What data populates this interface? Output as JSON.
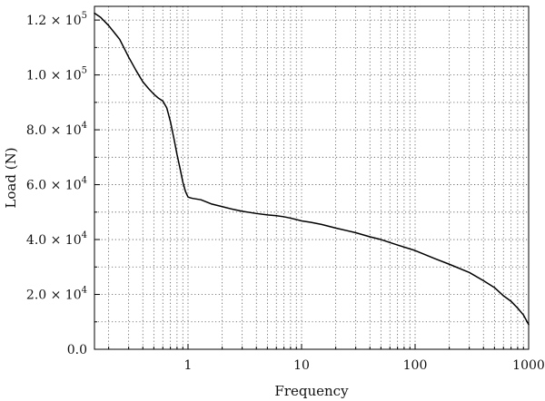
{
  "chart_data": {
    "type": "line",
    "title": "",
    "xlabel": "Frequency",
    "ylabel": "Load (N)",
    "x_scale": "log",
    "xlim": [
      0.15,
      1000
    ],
    "ylim": [
      0,
      125000
    ],
    "grid": true,
    "x_ticks": [
      {
        "value": 1,
        "label": "1"
      },
      {
        "value": 10,
        "label": "10"
      },
      {
        "value": 100,
        "label": "100"
      },
      {
        "value": 1000,
        "label": "1000"
      }
    ],
    "y_ticks": [
      {
        "value": 0,
        "mantissa": "0.0",
        "exponent": ""
      },
      {
        "value": 20000,
        "mantissa": "2.0",
        "exponent": "4"
      },
      {
        "value": 40000,
        "mantissa": "4.0",
        "exponent": "4"
      },
      {
        "value": 60000,
        "mantissa": "6.0",
        "exponent": "4"
      },
      {
        "value": 80000,
        "mantissa": "8.0",
        "exponent": "4"
      },
      {
        "value": 100000,
        "mantissa": "1.0",
        "exponent": "5"
      },
      {
        "value": 120000,
        "mantissa": "1.2",
        "exponent": "5"
      }
    ],
    "series": [
      {
        "color": "#000000",
        "x": [
          0.15,
          0.17,
          0.2,
          0.25,
          0.3,
          0.35,
          0.4,
          0.45,
          0.5,
          0.55,
          0.6,
          0.65,
          0.7,
          0.75,
          0.8,
          0.85,
          0.9,
          0.95,
          1.0,
          1.05,
          1.1,
          1.3,
          1.6,
          2,
          2.5,
          3,
          4,
          5,
          6,
          7,
          8,
          9,
          10,
          12,
          15,
          20,
          30,
          40,
          50,
          70,
          100,
          150,
          200,
          300,
          400,
          500,
          600,
          700,
          800,
          900,
          1000
        ],
        "y": [
          122500,
          121000,
          118000,
          113000,
          106500,
          101500,
          97500,
          95000,
          93000,
          91500,
          90500,
          88000,
          83000,
          77000,
          71000,
          66000,
          61000,
          57500,
          55500,
          55200,
          55000,
          54500,
          53000,
          52000,
          51000,
          50300,
          49500,
          49000,
          48700,
          48300,
          47800,
          47300,
          46800,
          46300,
          45500,
          44200,
          42500,
          41000,
          40000,
          38000,
          36000,
          33000,
          31000,
          28000,
          25000,
          22500,
          19500,
          17500,
          15000,
          12500,
          9000
        ]
      }
    ]
  }
}
